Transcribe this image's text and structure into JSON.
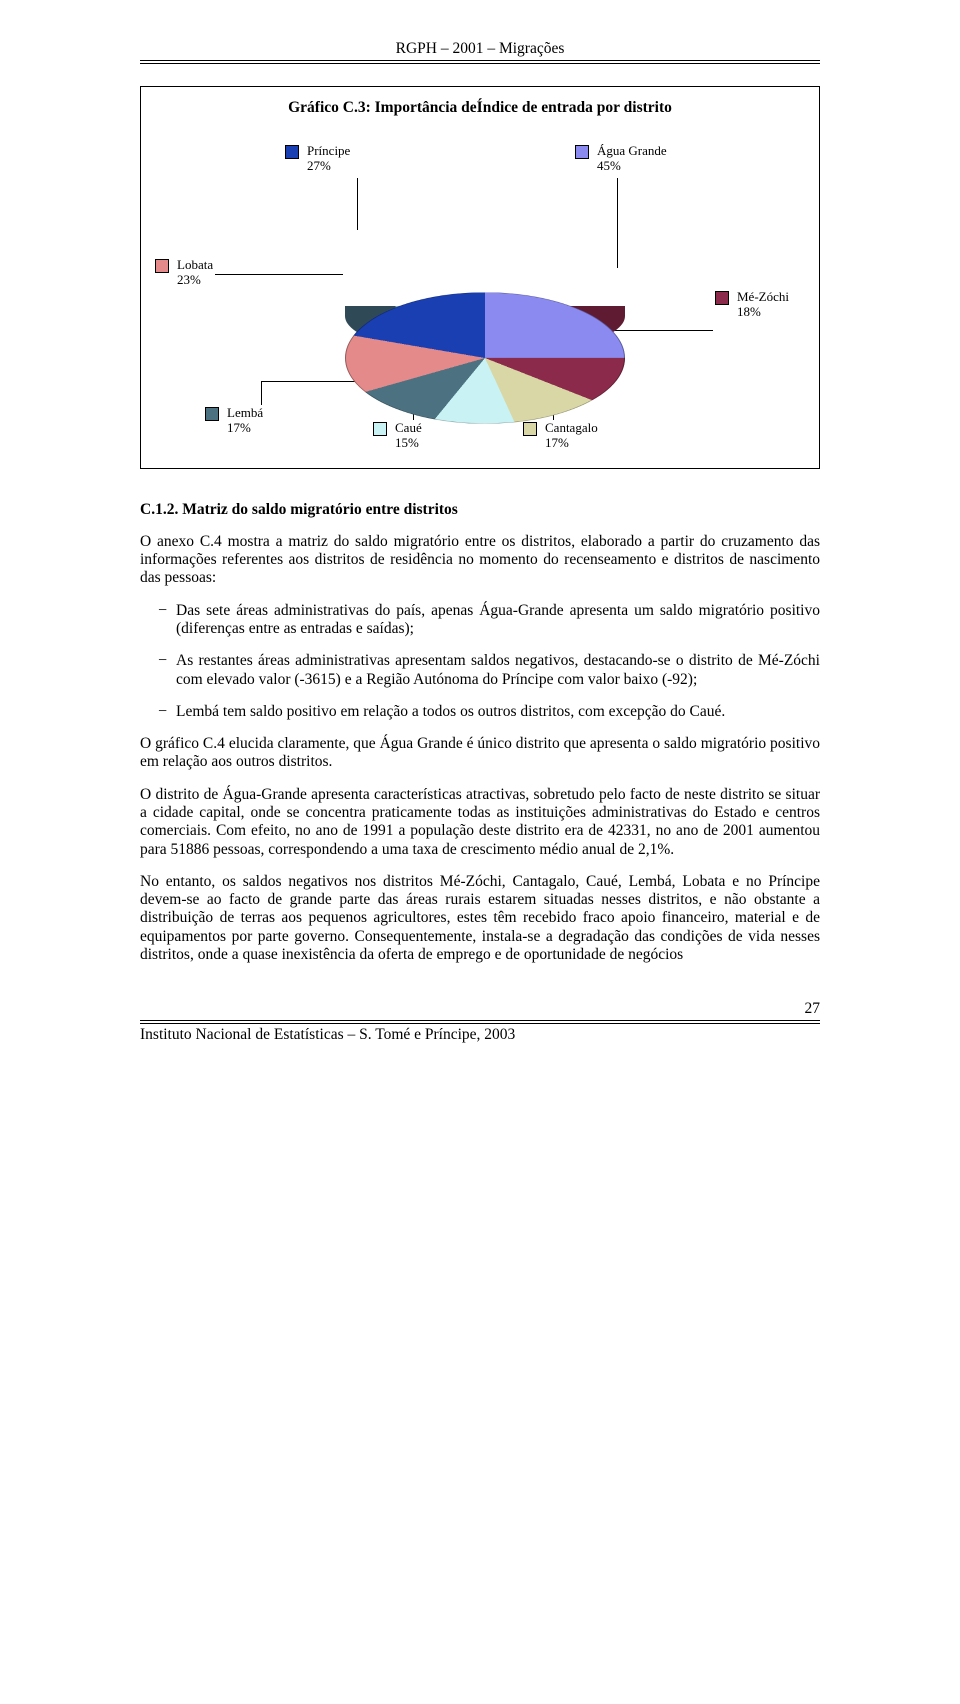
{
  "running_header": "RGPH – 2001 – Migrações",
  "chart": {
    "type": "pie",
    "title_prefix": "Gráfico C.3: ",
    "title_rest": "Importância deÍndice de entrada por distrito",
    "slices": [
      {
        "name": "Água Grande",
        "value": 45,
        "label": "Água Grande\n45%",
        "color": "#8a8af0",
        "side_color": "#5a5ab0"
      },
      {
        "name": "Mé-Zóchi",
        "value": 18,
        "label": "Mé-Zóchi\n18%",
        "color": "#8b2a4a",
        "side_color": "#5e1b31"
      },
      {
        "name": "Cantagalo",
        "value": 17,
        "label": "Cantagalo\n17%",
        "color": "#d9d7a6",
        "side_color": "#a09d6f"
      },
      {
        "name": "Caué",
        "value": 15,
        "label": "Caué\n15%",
        "color": "#c8f2f4",
        "side_color": "#88b9bb"
      },
      {
        "name": "Lembá",
        "value": 17,
        "label": "Lembá\n17%",
        "color": "#4c7282",
        "side_color": "#2f4a56"
      },
      {
        "name": "Lobata",
        "value": 23,
        "label": "Lobata\n23%",
        "color": "#e58a8a",
        "side_color": "#b05f5f"
      },
      {
        "name": "Príncipe",
        "value": 27,
        "label": "Príncipe\n27%",
        "color": "#1a3fb3",
        "side_color": "#10286f"
      }
    ],
    "background_color": "#ffffff",
    "label_fontsize": 13,
    "swatch_border": "#000000",
    "title_fontweight": "bold"
  },
  "section": {
    "heading": "C.1.2. Matriz do saldo migratório entre distritos",
    "intro": "O anexo C.4 mostra a matriz do saldo migratório entre os distritos, elaborado a partir do cruzamento das informações referentes aos distritos de residência no momento do recenseamento e distritos de nascimento das pessoas:",
    "bullets": [
      "Das sete áreas administrativas do país, apenas Água-Grande apresenta um saldo migratório positivo (diferenças entre as entradas e saídas);",
      "As restantes áreas administrativas apresentam saldos negativos, destacando-se o distrito de Mé-Zóchi com elevado valor (-3615) e a Região Autónoma do Príncipe com valor baixo (-92);",
      "Lembá tem saldo positivo em relação a todos os outros distritos, com excepção do Caué."
    ],
    "p1": "O gráfico C.4 elucida claramente, que Água Grande é único distrito que apresenta o saldo migratório positivo em relação aos outros distritos.",
    "p2": "O distrito de Água-Grande apresenta características atractivas, sobretudo pelo facto de neste distrito se situar a cidade capital, onde se concentra praticamente todas as instituições administrativas do Estado e centros comerciais. Com efeito, no ano de 1991 a população deste distrito era de 42331, no ano de 2001 aumentou para 51886 pessoas, correspondendo a uma taxa de crescimento médio anual de 2,1%.",
    "p3": "No entanto, os saldos negativos nos distritos Mé-Zóchi, Cantagalo, Caué, Lembá, Lobata e no Príncipe devem-se ao facto de grande parte das áreas rurais estarem situadas nesses distritos, e não obstante a distribuição de terras aos pequenos agricultores, estes têm recebido fraco apoio financeiro, material e de equipamentos por parte governo. Consequentemente, instala-se a degradação das condições de vida nesses distritos, onde a quase inexistência da oferta de emprego e de oportunidade de negócios"
  },
  "footer": {
    "page_number": "27",
    "text": "Instituto Nacional de Estatísticas – S. Tomé e Príncipe, 2003"
  }
}
